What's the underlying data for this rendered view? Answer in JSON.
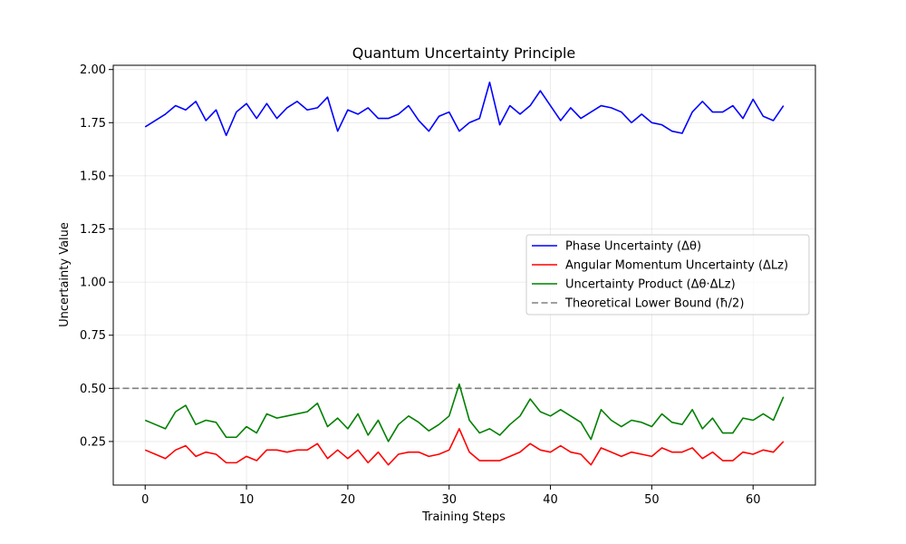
{
  "chart_data": {
    "type": "line",
    "title": "Quantum Uncertainty Principle",
    "xlabel": "Training Steps",
    "ylabel": "Uncertainty Value",
    "xlim": [
      -3.15,
      66.15
    ],
    "ylim": [
      0.045,
      2.02
    ],
    "xticks": [
      0,
      10,
      20,
      30,
      40,
      50,
      60
    ],
    "xtick_labels": [
      "0",
      "10",
      "20",
      "30",
      "40",
      "50",
      "60"
    ],
    "yticks": [
      0.25,
      0.5,
      0.75,
      1.0,
      1.25,
      1.5,
      1.75,
      2.0
    ],
    "ytick_labels": [
      "0.25",
      "0.50",
      "0.75",
      "1.00",
      "1.25",
      "1.50",
      "1.75",
      "2.00"
    ],
    "grid": true,
    "legend_position": "center-right",
    "x": [
      0,
      1,
      2,
      3,
      4,
      5,
      6,
      7,
      8,
      9,
      10,
      11,
      12,
      13,
      14,
      15,
      16,
      17,
      18,
      19,
      20,
      21,
      22,
      23,
      24,
      25,
      26,
      27,
      28,
      29,
      30,
      31,
      32,
      33,
      34,
      35,
      36,
      37,
      38,
      39,
      40,
      41,
      42,
      43,
      44,
      45,
      46,
      47,
      48,
      49,
      50,
      51,
      52,
      53,
      54,
      55,
      56,
      57,
      58,
      59,
      60,
      61,
      62,
      63
    ],
    "series": [
      {
        "name": "Phase Uncertainty (Δθ)",
        "color": "#0000ff",
        "style": "solid",
        "values": [
          1.73,
          1.76,
          1.79,
          1.83,
          1.81,
          1.85,
          1.76,
          1.81,
          1.69,
          1.8,
          1.84,
          1.77,
          1.84,
          1.77,
          1.82,
          1.85,
          1.81,
          1.82,
          1.87,
          1.71,
          1.81,
          1.79,
          1.82,
          1.77,
          1.77,
          1.79,
          1.83,
          1.76,
          1.71,
          1.78,
          1.8,
          1.71,
          1.75,
          1.77,
          1.94,
          1.74,
          1.83,
          1.79,
          1.83,
          1.9,
          1.83,
          1.76,
          1.82,
          1.77,
          1.8,
          1.83,
          1.82,
          1.8,
          1.75,
          1.79,
          1.75,
          1.74,
          1.71,
          1.7,
          1.8,
          1.85,
          1.8,
          1.8,
          1.83,
          1.77,
          1.86,
          1.78,
          1.76,
          1.83
        ]
      },
      {
        "name": "Angular Momentum Uncertainty (ΔLz)",
        "color": "#ff0000",
        "style": "solid",
        "values": [
          0.21,
          0.19,
          0.17,
          0.21,
          0.23,
          0.18,
          0.2,
          0.19,
          0.15,
          0.15,
          0.18,
          0.16,
          0.21,
          0.21,
          0.2,
          0.21,
          0.21,
          0.24,
          0.17,
          0.21,
          0.17,
          0.21,
          0.15,
          0.2,
          0.14,
          0.19,
          0.2,
          0.2,
          0.18,
          0.19,
          0.21,
          0.31,
          0.2,
          0.16,
          0.16,
          0.16,
          0.18,
          0.2,
          0.24,
          0.21,
          0.2,
          0.23,
          0.2,
          0.19,
          0.14,
          0.22,
          0.2,
          0.18,
          0.2,
          0.19,
          0.18,
          0.22,
          0.2,
          0.2,
          0.22,
          0.17,
          0.2,
          0.16,
          0.16,
          0.2,
          0.19,
          0.21,
          0.2,
          0.25
        ]
      },
      {
        "name": "Uncertainty Product (Δθ·ΔLz)",
        "color": "#008000",
        "style": "solid",
        "values": [
          0.35,
          0.33,
          0.31,
          0.39,
          0.42,
          0.33,
          0.35,
          0.34,
          0.27,
          0.27,
          0.32,
          0.29,
          0.38,
          0.36,
          0.37,
          0.38,
          0.39,
          0.43,
          0.32,
          0.36,
          0.31,
          0.38,
          0.28,
          0.35,
          0.25,
          0.33,
          0.37,
          0.34,
          0.3,
          0.33,
          0.37,
          0.52,
          0.35,
          0.29,
          0.31,
          0.28,
          0.33,
          0.37,
          0.45,
          0.39,
          0.37,
          0.4,
          0.37,
          0.34,
          0.26,
          0.4,
          0.35,
          0.32,
          0.35,
          0.34,
          0.32,
          0.38,
          0.34,
          0.33,
          0.4,
          0.31,
          0.36,
          0.29,
          0.29,
          0.36,
          0.35,
          0.38,
          0.35,
          0.46
        ]
      },
      {
        "name": "Theoretical Lower Bound (ħ/2)",
        "color": "#808080",
        "style": "dashed",
        "constant": 0.5
      }
    ]
  }
}
